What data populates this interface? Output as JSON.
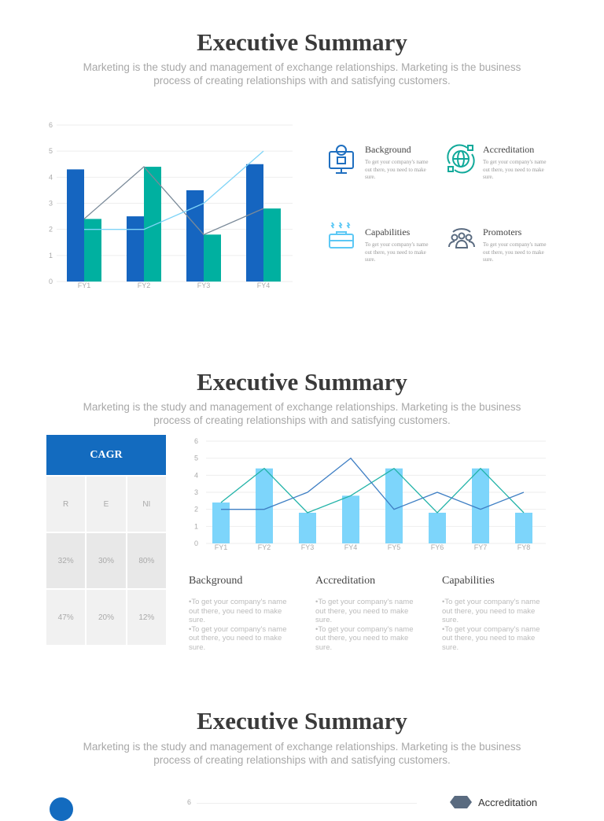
{
  "sections": [
    {
      "title": "Executive Summary",
      "subtitle": "Marketing is the study and management of exchange relationships. Marketing is the business process of creating relationships with and satisfying customers."
    },
    {
      "title": "Executive Summary",
      "subtitle": "Marketing is the study and management of exchange relationships. Marketing is the business process of creating relationships with and satisfying customers."
    },
    {
      "title": "Executive Summary",
      "subtitle": "Marketing is the study and management of exchange relationships. Marketing is the business process of creating relationships with and satisfying customers."
    }
  ],
  "features": [
    {
      "title": "Background",
      "text": "To get your company's name out there, you need to make sure.",
      "icon": "monitor-gear-icon",
      "color": "#1f6fc0"
    },
    {
      "title": "Accreditation",
      "text": "To get your company's name out there, you need to make sure.",
      "icon": "globe-icon",
      "color": "#11a99a"
    },
    {
      "title": "Capabilities",
      "text": "To get your company's name out there, you need to make sure.",
      "icon": "briefcase-icon",
      "color": "#5cc8f5"
    },
    {
      "title": "Promoters",
      "text": "To get your company's name out there, you need to make sure.",
      "icon": "people-icon",
      "color": "#5a6b80"
    }
  ],
  "cagr": {
    "title": "CAGR",
    "headers": [
      "R",
      "E",
      "NI"
    ],
    "rows": [
      [
        "32%",
        "30%",
        "80%"
      ],
      [
        "47%",
        "20%",
        "12%"
      ]
    ]
  },
  "columns": [
    {
      "title": "Background",
      "bullets": [
        "•To get your company's name out there, you need to make sure.",
        "•To get your company's name out there, you need to make sure."
      ]
    },
    {
      "title": "Accreditation",
      "bullets": [
        "•To get your company's name out there, you need to make sure.",
        "•To get your company's name out there, you need to make sure."
      ]
    },
    {
      "title": "Capabilities",
      "bullets": [
        "•To get your company's name out there, you need to make sure.",
        "•To get your company's name out there, you need to make sure."
      ]
    }
  ],
  "bottom": {
    "axis_top": "6",
    "feature": "Accreditation"
  },
  "chart_data": [
    {
      "type": "bar",
      "categories": [
        "FY1",
        "FY2",
        "FY3",
        "FY4"
      ],
      "ylim": [
        0,
        6
      ],
      "yticks": [
        "0",
        "1",
        "2",
        "3",
        "4",
        "5",
        "6"
      ],
      "grid": true,
      "series": [
        {
          "kind": "bar",
          "color": "#1565c0",
          "values": [
            4.3,
            2.5,
            3.5,
            4.5
          ]
        },
        {
          "kind": "bar",
          "color": "#00b0a0",
          "values": [
            2.4,
            4.4,
            1.8,
            2.8
          ]
        },
        {
          "kind": "line",
          "color": "#7a8a99",
          "values": [
            2.4,
            4.4,
            1.8,
            2.8
          ]
        },
        {
          "kind": "line",
          "color": "#7fd4f7",
          "values": [
            2,
            2,
            3,
            5
          ]
        }
      ]
    },
    {
      "type": "bar",
      "categories": [
        "FY1",
        "FY2",
        "FY3",
        "FY4",
        "FY5",
        "FY6",
        "FY7",
        "FY8"
      ],
      "ylim": [
        0,
        6
      ],
      "yticks": [
        "0",
        "1",
        "2",
        "3",
        "4",
        "5",
        "6"
      ],
      "grid": true,
      "series": [
        {
          "kind": "bar",
          "color": "#7dd5fb",
          "values": [
            2.4,
            4.4,
            1.8,
            2.8,
            4.4,
            1.8,
            4.4,
            1.8
          ]
        },
        {
          "kind": "line",
          "color": "#22b3a8",
          "values": [
            2.4,
            4.4,
            1.8,
            2.8,
            4.4,
            1.8,
            4.4,
            1.8
          ]
        },
        {
          "kind": "line",
          "color": "#3f7fc4",
          "values": [
            2,
            2,
            3,
            5,
            2,
            3,
            2,
            3
          ]
        }
      ]
    }
  ]
}
